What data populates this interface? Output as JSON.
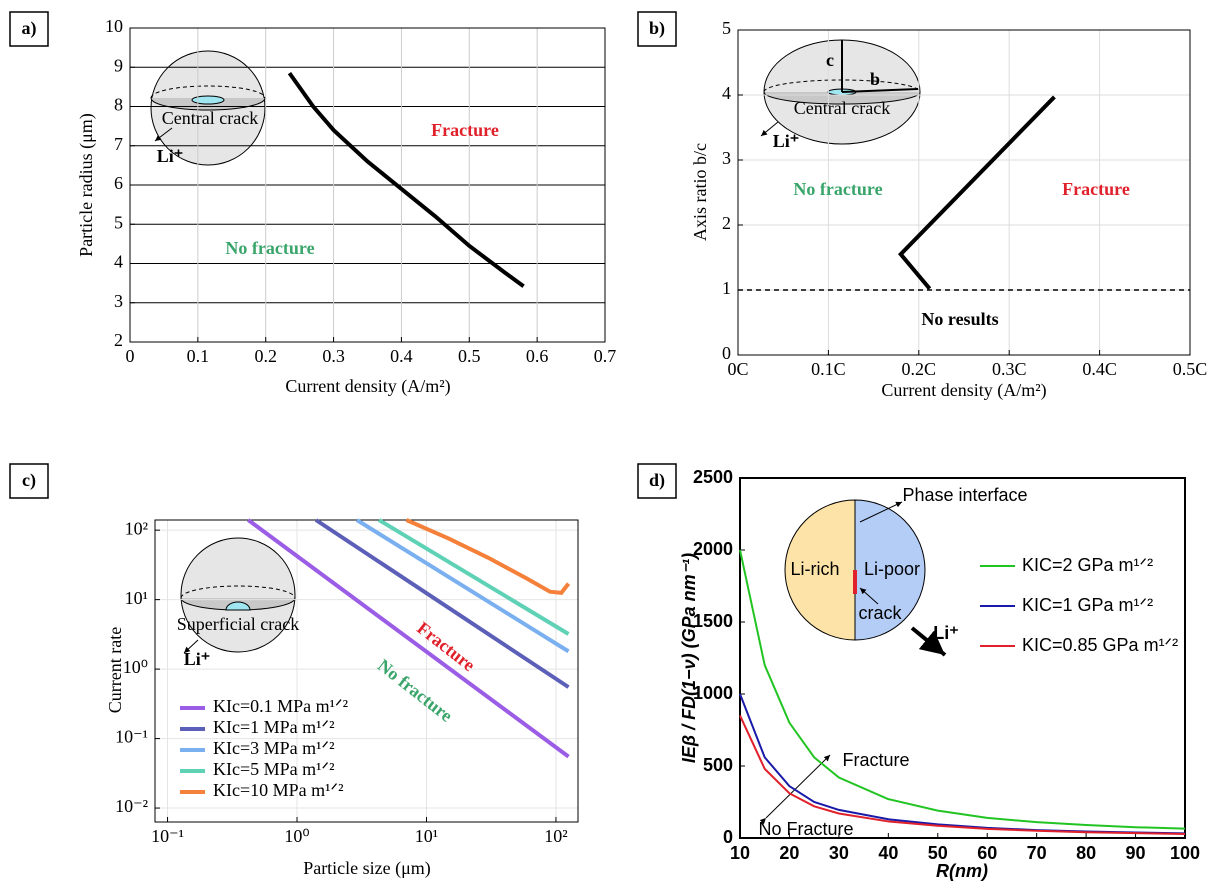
{
  "chart_data": [
    {
      "type": "line",
      "panel_label": "a)",
      "xlabel": "Current density (A/m²)",
      "ylabel": "Particle radius (μm)",
      "xlim": [
        0,
        0.7
      ],
      "xticks": [
        0,
        0.1,
        0.2,
        0.3,
        0.4,
        0.5,
        0.6,
        0.7
      ],
      "ylim": [
        2,
        10
      ],
      "yticks": [
        2,
        3,
        4,
        5,
        6,
        7,
        8,
        9,
        10
      ],
      "grid": true,
      "series": [
        {
          "color": "#000000",
          "x": [
            0.235,
            0.27,
            0.3,
            0.35,
            0.4,
            0.45,
            0.5,
            0.55,
            0.58
          ],
          "values": [
            8.85,
            8.0,
            7.4,
            6.6,
            5.9,
            5.2,
            4.45,
            3.8,
            3.42
          ]
        }
      ],
      "annotations": [
        "Fracture",
        "No fracture",
        "Central crack",
        "Li⁺"
      ]
    },
    {
      "type": "line",
      "panel_label": "b)",
      "xlabel": "Current density (A/m²)",
      "ylabel": "Axis ratio b/c",
      "xlim": [
        0,
        0.5
      ],
      "xticks": [
        {
          "value": 0,
          "label": "0C"
        },
        {
          "value": 0.1,
          "label": "0.1C"
        },
        {
          "value": 0.2,
          "label": "0.2C"
        },
        {
          "value": 0.3,
          "label": "0.3C"
        },
        {
          "value": 0.4,
          "label": "0.4C"
        },
        {
          "value": 0.5,
          "label": "0.5C"
        }
      ],
      "ylim": [
        0,
        5
      ],
      "yticks": [
        0,
        1,
        2,
        3,
        4,
        5
      ],
      "grid": true,
      "reference_line": 1,
      "series": [
        {
          "color": "#000000",
          "x": [
            0.35,
            0.18,
            0.212
          ],
          "values": [
            3.97,
            1.55,
            1.02
          ]
        }
      ],
      "annotations": [
        "No fracture",
        "Fracture",
        "No results",
        "Central crack",
        "c",
        "b",
        "Li⁺"
      ]
    },
    {
      "type": "line",
      "panel_label": "c)",
      "xlabel": "Particle size (μm)",
      "ylabel": "Current rate",
      "log_x": true,
      "log_y": true,
      "xlim": [
        0.08,
        148
      ],
      "xticks": [
        {
          "value": 0.1,
          "label": "10⁻¹"
        },
        {
          "value": 1,
          "label": "10⁰"
        },
        {
          "value": 10,
          "label": "10¹"
        },
        {
          "value": 100,
          "label": "10²"
        }
      ],
      "ylim": [
        0.0063,
        140
      ],
      "yticks": [
        {
          "value": 0.01,
          "label": "10⁻²"
        },
        {
          "value": 0.1,
          "label": "10⁻¹"
        },
        {
          "value": 1,
          "label": "10⁰"
        },
        {
          "value": 10,
          "label": "10¹"
        },
        {
          "value": 100,
          "label": "10²"
        }
      ],
      "grid": true,
      "series": [
        {
          "name": "KIc=0.1 MPa m¹ᐟ²",
          "color": "#9b5de5",
          "x": [
            0.42,
            125
          ],
          "values": [
            140,
            0.055
          ]
        },
        {
          "name": "KIc=1 MPa m¹ᐟ²",
          "color": "#5c5fb8",
          "x": [
            1.4,
            125
          ],
          "values": [
            140,
            0.55
          ]
        },
        {
          "name": "KIc=3 MPa m¹ᐟ²",
          "color": "#7aaff0",
          "x": [
            2.9,
            125
          ],
          "values": [
            140,
            1.8
          ]
        },
        {
          "name": "KIc=5 MPa m¹ᐟ²",
          "color": "#5fd1b5",
          "x": [
            4.3,
            125
          ],
          "values": [
            140,
            3.2
          ]
        },
        {
          "name": "KIc=10 MPa m¹ᐟ²",
          "color": "#f5803a",
          "x": [
            7,
            15,
            30,
            60,
            90,
            110,
            125
          ],
          "values": [
            140,
            75,
            40,
            20,
            13,
            12.5,
            17
          ]
        }
      ],
      "annotations": [
        "Fracture",
        "No fracture",
        "Superficial crack",
        "Li⁺"
      ]
    },
    {
      "type": "line",
      "panel_label": "d)",
      "xlabel": "R(nm)",
      "ylabel": "IEβ / FD(1−ν) (GPa nm⁻¹)",
      "xlim": [
        10,
        100
      ],
      "xticks": [
        10,
        20,
        30,
        40,
        50,
        60,
        70,
        80,
        90,
        100
      ],
      "ylim": [
        0,
        2500
      ],
      "yticks": [
        0,
        500,
        1000,
        1500,
        2000,
        2500
      ],
      "grid": false,
      "x": [
        10,
        15,
        20,
        25,
        30,
        40,
        50,
        60,
        70,
        80,
        90,
        100
      ],
      "series": [
        {
          "name": "KIC=2 GPa m¹ᐟ²",
          "color": "#22c422",
          "values": [
            2000,
            1200,
            800,
            560,
            420,
            270,
            190,
            140,
            110,
            90,
            75,
            65
          ]
        },
        {
          "name": "KIC=1 GPa m¹ᐟ²",
          "color": "#1a1aa8",
          "values": [
            1000,
            560,
            360,
            250,
            195,
            130,
            95,
            70,
            55,
            45,
            38,
            32
          ]
        },
        {
          "name": "KIC=0.85 GPa m¹ᐟ²",
          "color": "#e0202a",
          "values": [
            850,
            480,
            310,
            220,
            170,
            115,
            85,
            63,
            50,
            40,
            34,
            28
          ]
        }
      ],
      "annotations": [
        "Phase interface",
        "Li-rich",
        "Li-poor",
        "crack",
        "Li⁺",
        "Fracture",
        "No Fracture"
      ]
    }
  ]
}
